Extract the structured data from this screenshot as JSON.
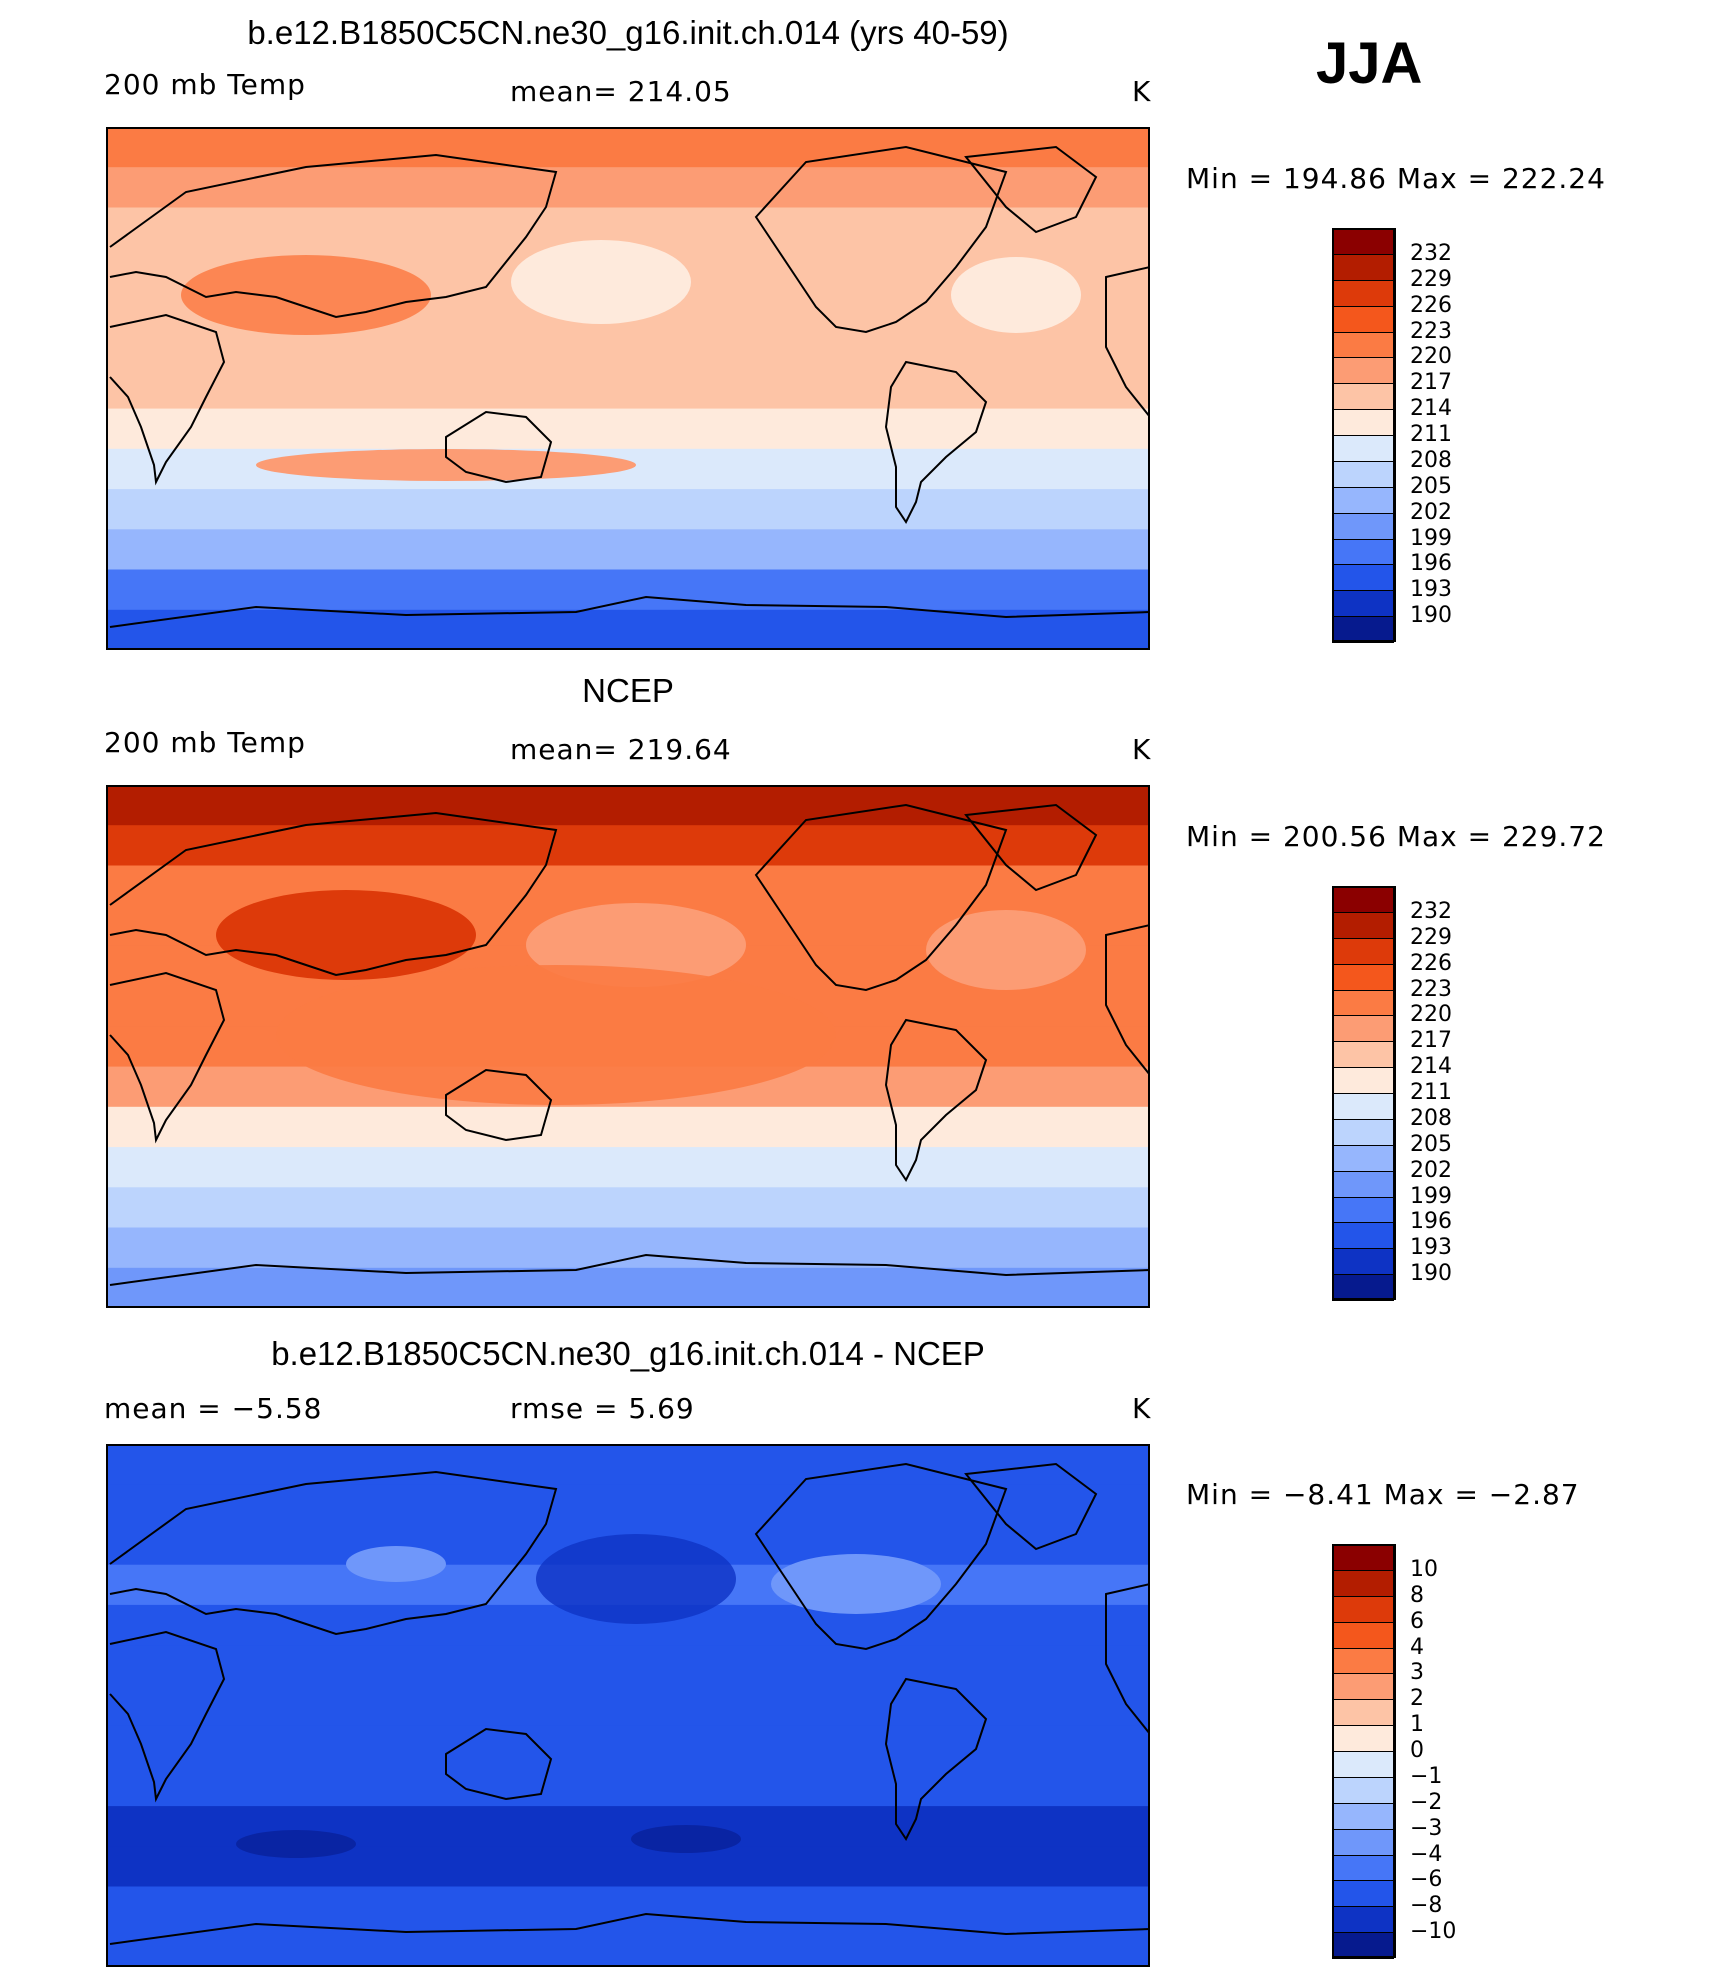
{
  "season": "JJA",
  "panels": [
    {
      "id": "model",
      "title": "b.e12.B1850C5CN.ne30_g16.init.ch.014 (yrs 40-59)",
      "left_label": "200 mb Temp",
      "center_label": "mean= 214.05",
      "right_label": "K",
      "minmax": "Min = 194.86 Max = 222.24",
      "colorbar": {
        "ticks": [
          "232",
          "229",
          "226",
          "223",
          "220",
          "217",
          "214",
          "211",
          "208",
          "205",
          "202",
          "199",
          "196",
          "193",
          "190"
        ],
        "colors": [
          "#8b0000",
          "#b31d00",
          "#dd3a0a",
          "#f4571c",
          "#fb7b44",
          "#fc9c74",
          "#fdc4a6",
          "#feeadc",
          "#dbe9fb",
          "#bcd4fd",
          "#96b6fd",
          "#6f97fa",
          "#4676f7",
          "#2355ea",
          "#0e33c4",
          "#061a8e"
        ]
      },
      "bands": [
        "#fb7b44",
        "#fc9c74",
        "#fdc4a6",
        "#fdc4a6",
        "#fdc4a6",
        "#fdc4a6",
        "#fdc4a6",
        "#feeadc",
        "#dbe9fb",
        "#bcd4fd",
        "#96b6fd",
        "#4676f7",
        "#2355ea"
      ]
    },
    {
      "id": "obs",
      "title": "NCEP",
      "left_label": "200 mb Temp",
      "center_label": "mean= 219.64",
      "right_label": "K",
      "minmax": "Min = 200.56 Max = 229.72",
      "colorbar": {
        "ticks": [
          "232",
          "229",
          "226",
          "223",
          "220",
          "217",
          "214",
          "211",
          "208",
          "205",
          "202",
          "199",
          "196",
          "193",
          "190"
        ],
        "colors": [
          "#8b0000",
          "#b31d00",
          "#dd3a0a",
          "#f4571c",
          "#fb7b44",
          "#fc9c74",
          "#fdc4a6",
          "#feeadc",
          "#dbe9fb",
          "#bcd4fd",
          "#96b6fd",
          "#6f97fa",
          "#4676f7",
          "#2355ea",
          "#0e33c4",
          "#061a8e"
        ]
      },
      "bands": [
        "#b31d00",
        "#dd3a0a",
        "#fb7b44",
        "#fb7b44",
        "#fb7b44",
        "#fb7b44",
        "#fb7b44",
        "#fc9c74",
        "#feeadc",
        "#dbe9fb",
        "#bcd4fd",
        "#96b6fd",
        "#6f97fa"
      ]
    },
    {
      "id": "diff",
      "title": "b.e12.B1850C5CN.ne30_g16.init.ch.014 - NCEP",
      "left_label": "mean =   −5.58",
      "center_label": "rmse =    5.69",
      "right_label": "K",
      "minmax": "Min =  −8.41 Max =  −2.87",
      "colorbar": {
        "ticks": [
          "10",
          "8",
          "6",
          "4",
          "3",
          "2",
          "1",
          "0",
          "−1",
          "−2",
          "−3",
          "−4",
          "−6",
          "−8",
          "−10"
        ],
        "colors": [
          "#8b0000",
          "#b31d00",
          "#dd3a0a",
          "#f4571c",
          "#fb7b44",
          "#fc9c74",
          "#fdc4a6",
          "#feeadc",
          "#dbe9fb",
          "#bcd4fd",
          "#96b6fd",
          "#6f97fa",
          "#4676f7",
          "#2355ea",
          "#0e33c4",
          "#061a8e"
        ]
      },
      "bands": [
        "#2355ea",
        "#2355ea",
        "#2355ea",
        "#4676f7",
        "#2355ea",
        "#2355ea",
        "#2355ea",
        "#2355ea",
        "#2355ea",
        "#0e33c4",
        "#0e33c4",
        "#2355ea",
        "#2355ea"
      ]
    }
  ]
}
